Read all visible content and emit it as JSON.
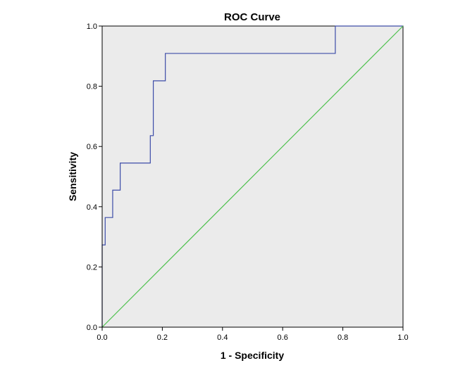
{
  "chart_data": {
    "type": "line",
    "title": "ROC Curve",
    "xlabel": "1 - Specificity",
    "ylabel": "Sensitivity",
    "xlim": [
      0.0,
      1.0
    ],
    "ylim": [
      0.0,
      1.0
    ],
    "xticks": [
      "0.0",
      "0.2",
      "0.4",
      "0.6",
      "0.8",
      "1.0"
    ],
    "yticks": [
      "0.0",
      "0.2",
      "0.4",
      "0.6",
      "0.8",
      "1.0"
    ],
    "grid": false,
    "legend": "none",
    "series": [
      {
        "x": [
          0.0,
          0.0,
          0.01,
          0.01,
          0.035,
          0.035,
          0.06,
          0.06,
          0.16,
          0.16,
          0.17,
          0.17,
          0.21,
          0.21,
          0.775,
          0.775,
          1.0
        ],
        "y": [
          0.0,
          0.273,
          0.273,
          0.364,
          0.364,
          0.455,
          0.455,
          0.545,
          0.545,
          0.636,
          0.636,
          0.818,
          0.818,
          0.909,
          0.909,
          1.0,
          1.0
        ],
        "color": "#3c4ca8"
      },
      {
        "x": [
          0.0,
          1.0
        ],
        "y": [
          0.0,
          1.0
        ],
        "color": "#4cc04c"
      }
    ],
    "plot_background": "#ebebeb",
    "axis_color": "#000000"
  }
}
